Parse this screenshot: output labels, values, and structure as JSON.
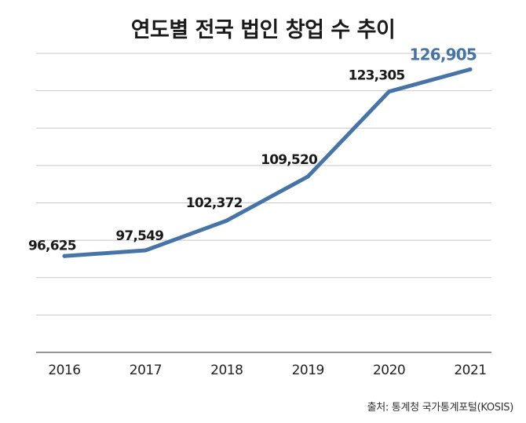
{
  "chart_data": {
    "type": "line",
    "title": "연도별 전국 법인 창업 수 추이",
    "categories": [
      "2016",
      "2017",
      "2018",
      "2019",
      "2020",
      "2021"
    ],
    "series": [
      {
        "name": "법인 창업 수",
        "values": [
          96625,
          97549,
          102372,
          109520,
          123305,
          126905
        ],
        "labels": [
          "96,625",
          "97,549",
          "102,372",
          "109,520",
          "123,305",
          "126,905"
        ]
      }
    ],
    "ylim": [
      81000,
      129500
    ],
    "xlabel": "",
    "ylabel": "",
    "grid": true,
    "legend": "none",
    "source": "출처: 통계청 국가통계포털(KOSIS)"
  },
  "colors": {
    "line": "#4673a8",
    "highlight_label": "#4673a8",
    "label": "#1a1a1a",
    "grid": "#c8c8c8",
    "axis": "#555555"
  }
}
